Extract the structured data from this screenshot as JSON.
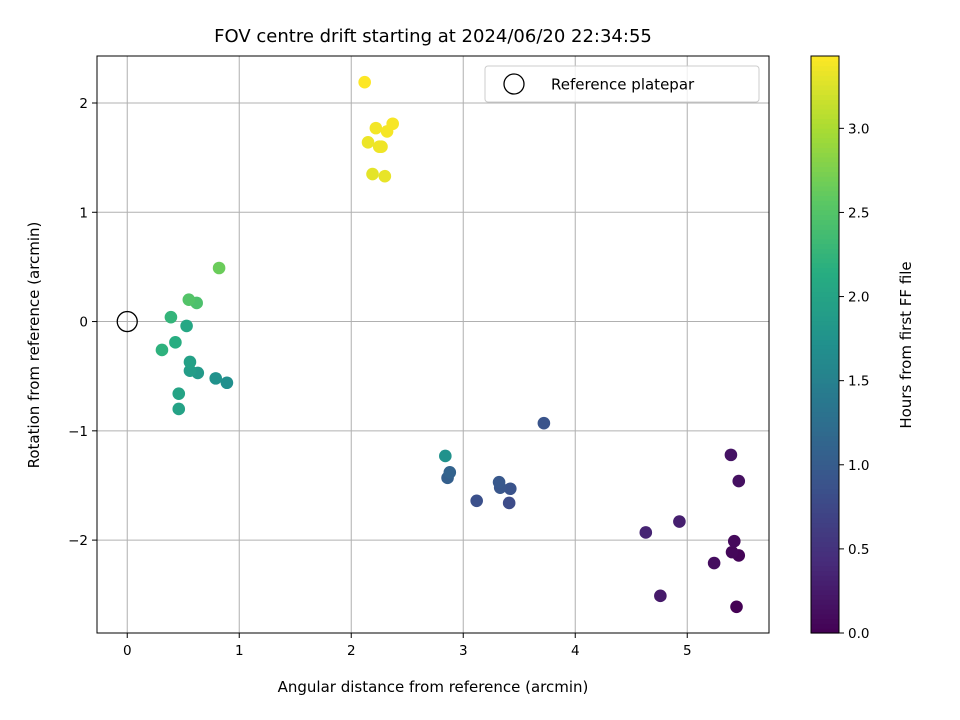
{
  "chart_data": {
    "type": "scatter",
    "title": "FOV centre drift starting at 2024/06/20 22:34:55",
    "xlabel": "Angular distance from reference (arcmin)",
    "ylabel": "Rotation from reference (arcmin)",
    "xlim": [
      -0.27,
      5.73
    ],
    "ylim": [
      -2.85,
      2.43
    ],
    "xticks": [
      0,
      1,
      2,
      3,
      4,
      5
    ],
    "xtick_labels": [
      "0",
      "1",
      "2",
      "3",
      "4",
      "5"
    ],
    "yticks": [
      -2,
      -1,
      0,
      1,
      2
    ],
    "ytick_labels": [
      "−2",
      "−1",
      "0",
      "1",
      "2"
    ],
    "grid": true,
    "legend": {
      "placement": "top-right",
      "entries": [
        "Reference platepar"
      ]
    },
    "reference_point": {
      "x": 0,
      "y": 0
    },
    "colorbar": {
      "label": "Hours from first FF file",
      "colormap": "viridis",
      "range": [
        0.0,
        3.43
      ],
      "ticks": [
        0.0,
        0.5,
        1.0,
        1.5,
        2.0,
        2.5,
        3.0
      ],
      "tick_labels": [
        "0.0",
        "0.5",
        "1.0",
        "1.5",
        "2.0",
        "2.5",
        "3.0"
      ]
    },
    "points": [
      {
        "x": 5.44,
        "y": -2.61,
        "hours": 0.0
      },
      {
        "x": 5.46,
        "y": -2.14,
        "hours": 0.03
      },
      {
        "x": 5.4,
        "y": -2.11,
        "hours": 0.06
      },
      {
        "x": 5.42,
        "y": -2.01,
        "hours": 0.09
      },
      {
        "x": 5.24,
        "y": -2.21,
        "hours": 0.12
      },
      {
        "x": 5.46,
        "y": -1.46,
        "hours": 0.15
      },
      {
        "x": 5.39,
        "y": -1.22,
        "hours": 0.18
      },
      {
        "x": 4.76,
        "y": -2.51,
        "hours": 0.25
      },
      {
        "x": 4.93,
        "y": -1.83,
        "hours": 0.3
      },
      {
        "x": 4.63,
        "y": -1.93,
        "hours": 0.35
      },
      {
        "x": 3.41,
        "y": -1.66,
        "hours": 0.8
      },
      {
        "x": 3.12,
        "y": -1.64,
        "hours": 0.85
      },
      {
        "x": 3.42,
        "y": -1.53,
        "hours": 0.88
      },
      {
        "x": 3.33,
        "y": -1.52,
        "hours": 0.92
      },
      {
        "x": 3.32,
        "y": -1.47,
        "hours": 0.95
      },
      {
        "x": 3.72,
        "y": -0.93,
        "hours": 0.9
      },
      {
        "x": 2.86,
        "y": -1.43,
        "hours": 1.05
      },
      {
        "x": 2.88,
        "y": -1.38,
        "hours": 1.1
      },
      {
        "x": 2.84,
        "y": -1.23,
        "hours": 1.75
      },
      {
        "x": 0.89,
        "y": -0.56,
        "hours": 1.7
      },
      {
        "x": 0.79,
        "y": -0.52,
        "hours": 1.75
      },
      {
        "x": 0.63,
        "y": -0.47,
        "hours": 1.85
      },
      {
        "x": 0.56,
        "y": -0.45,
        "hours": 1.9
      },
      {
        "x": 0.56,
        "y": -0.37,
        "hours": 1.95
      },
      {
        "x": 0.46,
        "y": -0.8,
        "hours": 1.98
      },
      {
        "x": 0.46,
        "y": -0.66,
        "hours": 2.0
      },
      {
        "x": 0.53,
        "y": -0.04,
        "hours": 2.05
      },
      {
        "x": 0.43,
        "y": -0.19,
        "hours": 2.15
      },
      {
        "x": 0.31,
        "y": -0.26,
        "hours": 2.2
      },
      {
        "x": 0.39,
        "y": 0.04,
        "hours": 2.25
      },
      {
        "x": 0.62,
        "y": 0.17,
        "hours": 2.45
      },
      {
        "x": 0.55,
        "y": 0.2,
        "hours": 2.5
      },
      {
        "x": 0.82,
        "y": 0.49,
        "hours": 2.65
      },
      {
        "x": 2.19,
        "y": 1.35,
        "hours": 3.3
      },
      {
        "x": 2.3,
        "y": 1.33,
        "hours": 3.32
      },
      {
        "x": 2.15,
        "y": 1.64,
        "hours": 3.34
      },
      {
        "x": 2.25,
        "y": 1.6,
        "hours": 3.35
      },
      {
        "x": 2.27,
        "y": 1.6,
        "hours": 3.36
      },
      {
        "x": 2.22,
        "y": 1.77,
        "hours": 3.38
      },
      {
        "x": 2.32,
        "y": 1.74,
        "hours": 3.39
      },
      {
        "x": 2.37,
        "y": 1.81,
        "hours": 3.4
      },
      {
        "x": 2.12,
        "y": 2.19,
        "hours": 3.43
      }
    ]
  }
}
